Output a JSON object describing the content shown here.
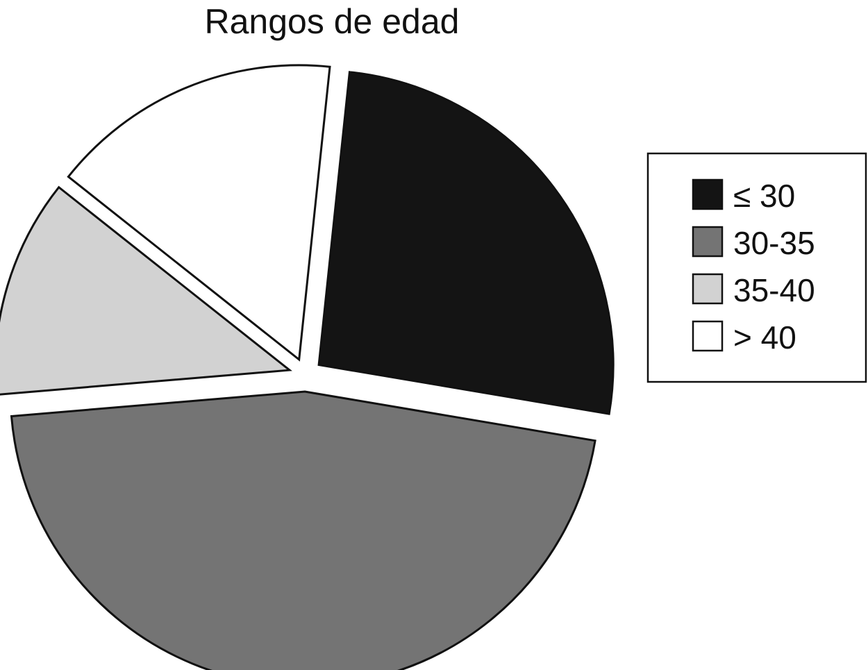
{
  "chart_data": {
    "type": "pie",
    "title": "Rangos de edad",
    "legend_position": "right",
    "exploded": true,
    "slices": [
      {
        "label": "≤ 30",
        "value": 26,
        "color": "#141414"
      },
      {
        "label": "30-35",
        "value": 46,
        "color": "#747474"
      },
      {
        "label": "35-40",
        "value": 12,
        "color": "#d2d2d2"
      },
      {
        "label": "> 40",
        "value": 16,
        "color": "#ffffff"
      }
    ]
  }
}
